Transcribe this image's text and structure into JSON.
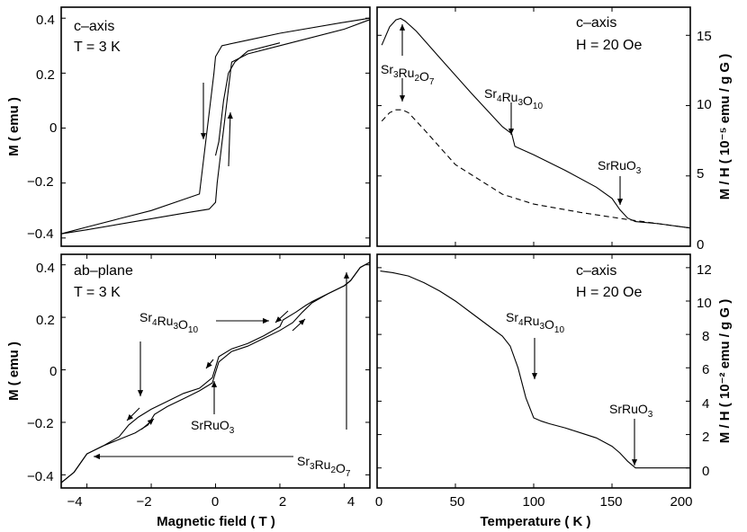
{
  "chart_data": [
    {
      "id": "tl",
      "type": "line",
      "title": "",
      "annotations": [
        "c–axis",
        "T = 3 K"
      ],
      "xlabel": "",
      "ylabel": "M ( emu )",
      "xlim": [
        -4.8,
        4.8
      ],
      "ylim": [
        -0.43,
        0.44
      ],
      "yticks": [
        "0.4",
        "0.2",
        "0",
        "−0.2",
        "−0.4"
      ],
      "xticks": [],
      "series": [
        {
          "name": "descending branch",
          "x": [
            4.8,
            4,
            2,
            1,
            0.2,
            0,
            -0.05,
            -0.5,
            -1,
            -2,
            -3,
            -4,
            -4.8
          ],
          "y": [
            0.4,
            0.385,
            0.345,
            0.32,
            0.3,
            0.26,
            0.2,
            -0.24,
            -0.26,
            -0.3,
            -0.33,
            -0.36,
            -0.385
          ]
        },
        {
          "name": "ascending branch",
          "x": [
            -4.8,
            -4,
            -2,
            -1,
            -0.2,
            0,
            0.05,
            0.5,
            1,
            2,
            4,
            4.8
          ],
          "y": [
            -0.385,
            -0.37,
            -0.33,
            -0.31,
            -0.295,
            -0.27,
            -0.2,
            0.24,
            0.27,
            0.3,
            0.36,
            0.395
          ]
        },
        {
          "name": "virgin curve",
          "x": [
            0,
            0.1,
            0.25,
            0.4,
            0.6,
            1,
            2
          ],
          "y": [
            -0.1,
            -0.05,
            0.1,
            0.2,
            0.24,
            0.28,
            0.31
          ]
        }
      ]
    },
    {
      "id": "tr",
      "type": "line",
      "title": "",
      "annotations": [
        "c–axis",
        "H = 20 Oe",
        "Sr3Ru2O7",
        "Sr4Ru3O10",
        "SrRuO3"
      ],
      "xlabel": "",
      "ylabel": "M / H ( 10⁻⁵ emu / g G )",
      "xlim": [
        0,
        200
      ],
      "ylim": [
        0,
        17
      ],
      "yticks": [
        "15",
        "10",
        "5",
        "0"
      ],
      "xticks": [],
      "series": [
        {
          "name": "solid",
          "x": [
            3,
            8,
            12,
            15,
            18,
            25,
            40,
            60,
            80,
            86,
            88,
            100,
            120,
            140,
            150,
            155,
            160,
            165,
            180,
            200
          ],
          "y": [
            14.3,
            15.6,
            16.1,
            16.2,
            16.0,
            15.3,
            13.4,
            10.9,
            8.5,
            8.0,
            7.1,
            6.5,
            5.4,
            4.2,
            3.4,
            2.6,
            2.0,
            1.75,
            1.6,
            1.3
          ]
        },
        {
          "name": "dashed",
          "x": [
            3,
            8,
            12,
            16,
            20,
            30,
            50,
            80,
            100,
            130,
            160,
            200
          ],
          "y": [
            8.9,
            9.5,
            9.7,
            9.7,
            9.5,
            8.3,
            5.8,
            3.7,
            3.0,
            2.4,
            1.9,
            1.3
          ]
        }
      ]
    },
    {
      "id": "bl",
      "type": "line",
      "title": "",
      "annotations": [
        "ab–plane",
        "T = 3 K",
        "Sr4Ru3O10",
        "SrRuO3",
        "Sr3Ru2O7"
      ],
      "xlabel": "Magnetic field ( T )",
      "ylabel": "M ( emu )",
      "xlim": [
        -4.8,
        4.8
      ],
      "ylim": [
        -0.45,
        0.44
      ],
      "yticks": [
        "0.4",
        "0.2",
        "0",
        "−0.2",
        "−0.4"
      ],
      "xticks": [
        "−4",
        "−2",
        "0",
        "2",
        "4"
      ],
      "series": [
        {
          "name": "up sweep",
          "x": [
            -4.8,
            -4.4,
            -4,
            -3.5,
            -3,
            -2.5,
            -2.1,
            -1.9,
            -1.5,
            -1,
            -0.5,
            -0.1,
            0.1,
            0.5,
            1,
            1.5,
            2,
            2.4,
            2.7,
            3,
            3.5,
            4,
            4.2,
            4.5,
            4.8
          ],
          "y": [
            -0.43,
            -0.39,
            -0.32,
            -0.29,
            -0.265,
            -0.24,
            -0.21,
            -0.17,
            -0.14,
            -0.11,
            -0.08,
            -0.05,
            0.03,
            0.07,
            0.09,
            0.12,
            0.15,
            0.18,
            0.22,
            0.255,
            0.29,
            0.32,
            0.34,
            0.39,
            0.41
          ]
        },
        {
          "name": "down sweep",
          "x": [
            4.8,
            4.5,
            4.2,
            4,
            3.5,
            3,
            2.8,
            2.5,
            2.1,
            2,
            1.5,
            1,
            0.5,
            0.1,
            -0.1,
            -0.5,
            -1,
            -1.5,
            -2,
            -2.4,
            -2.7,
            -3,
            -3.5,
            -4,
            -4.4,
            -4.8
          ],
          "y": [
            0.41,
            0.39,
            0.34,
            0.32,
            0.29,
            0.26,
            0.245,
            0.22,
            0.19,
            0.165,
            0.13,
            0.1,
            0.08,
            0.05,
            -0.03,
            -0.07,
            -0.09,
            -0.12,
            -0.15,
            -0.18,
            -0.21,
            -0.255,
            -0.29,
            -0.32,
            -0.39,
            -0.43
          ]
        }
      ]
    },
    {
      "id": "br",
      "type": "line",
      "title": "",
      "annotations": [
        "c–axis",
        "H = 20 Oe",
        "Sr4Ru3O10",
        "SrRuO3"
      ],
      "xlabel": "Temperature ( K )",
      "ylabel": "M / H ( 10⁻² emu / g G )",
      "xlim": [
        0,
        200
      ],
      "ylim": [
        -1.2,
        12.8
      ],
      "yticks": [
        "12",
        "10",
        "8",
        "6",
        "4",
        "2",
        "0"
      ],
      "xticks": [
        "0",
        "50",
        "100",
        "150",
        "200"
      ],
      "series": [
        {
          "name": "solid",
          "x": [
            2,
            10,
            20,
            30,
            40,
            50,
            60,
            70,
            80,
            85,
            90,
            95,
            100,
            105,
            110,
            120,
            130,
            140,
            150,
            155,
            160,
            165,
            180,
            200
          ],
          "y": [
            11.8,
            11.7,
            11.5,
            11.1,
            10.6,
            10.0,
            9.3,
            8.6,
            7.9,
            7.3,
            6.0,
            4.2,
            3.0,
            2.8,
            2.65,
            2.4,
            2.1,
            1.8,
            1.3,
            0.9,
            0.4,
            0.0,
            0.0,
            0.0
          ]
        }
      ]
    }
  ]
}
